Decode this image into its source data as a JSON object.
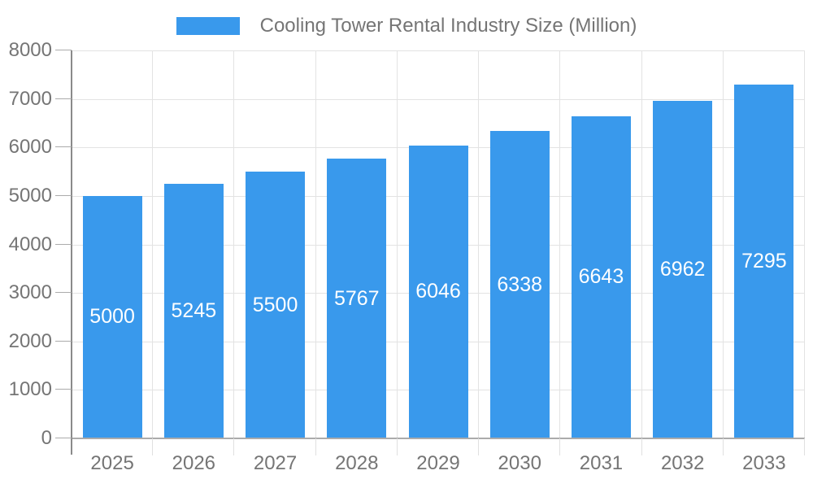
{
  "chart_data": {
    "type": "bar",
    "title": "Cooling Tower Rental Industry Size (Million)",
    "categories": [
      "2025",
      "2026",
      "2027",
      "2028",
      "2029",
      "2030",
      "2031",
      "2032",
      "2033"
    ],
    "series": [
      {
        "name": "Cooling Tower Rental Industry Size (Million)",
        "values": [
          5000,
          5245,
          5500,
          5767,
          6046,
          6338,
          6643,
          6962,
          7295
        ]
      }
    ],
    "data_labels_shown": true,
    "xlabel": "",
    "ylabel": "",
    "ylim": [
      0,
      8000
    ],
    "yticks": [
      0,
      1000,
      2000,
      3000,
      4000,
      5000,
      6000,
      7000,
      8000
    ],
    "grid": true,
    "legend_position": "top-center"
  },
  "colors": {
    "bar": "#3999EC",
    "bar_value_label": "#FFFFFF",
    "axis_text": "#757575",
    "legend_text": "#757575",
    "grid_line": "#E3E3E3",
    "y_axis_line": "#8A8A8A",
    "x_axis_line": "#ABABAB",
    "y_tick": "#ABABAB",
    "x_tick": "#E0E0E0",
    "background": "#FFFFFF"
  }
}
